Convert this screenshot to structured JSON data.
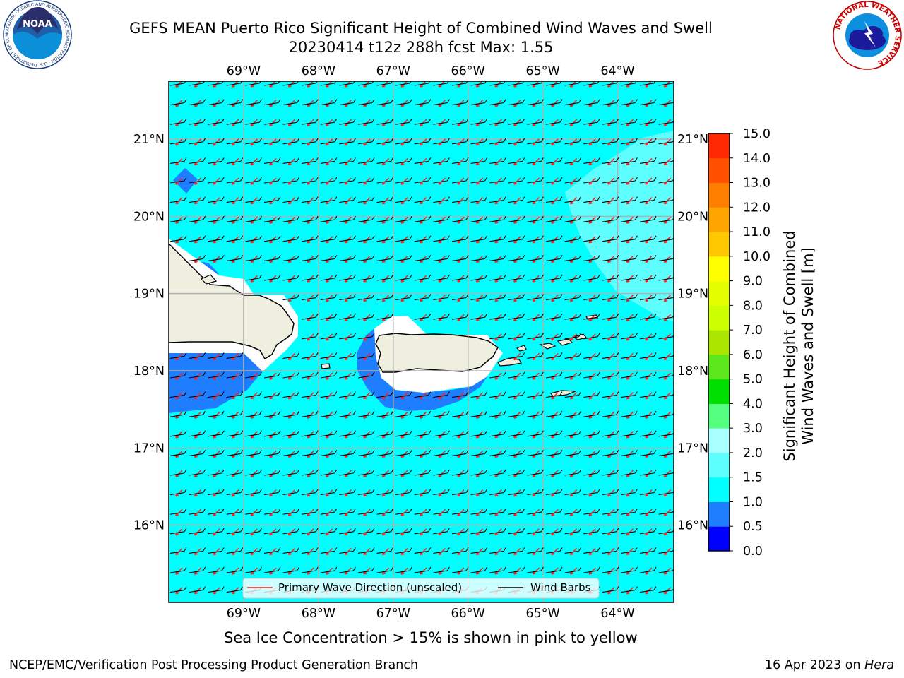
{
  "title": {
    "line1": "GEFS MEAN Puerto Rico Significant Height of Combined Wind Waves and Swell",
    "line2": "20230414 t12z 288h fcst   Max: 1.55"
  },
  "logos": {
    "left": {
      "text": "NOAA",
      "ring_text": "NATIONAL OCEANIC AND ATMOSPHERIC ADMINISTRATION · U.S. DEPARTMENT OF COMMERCE"
    },
    "right": {
      "ring_text": "NATIONAL WEATHER SERVICE"
    }
  },
  "map": {
    "lon_labels": [
      "69°W",
      "68°W",
      "67°W",
      "66°W",
      "65°W",
      "64°W"
    ],
    "lat_labels": [
      "21°N",
      "20°N",
      "19°N",
      "18°N",
      "17°N",
      "16°N"
    ],
    "lon_values": [
      -69,
      -68,
      -67,
      -66,
      -65,
      -64
    ],
    "lat_values": [
      21,
      20,
      19,
      18,
      17,
      16
    ],
    "extent": {
      "lon_min": -70,
      "lon_max": -63.25,
      "lat_min": 15,
      "lat_max": 21.75
    },
    "colors": {
      "ocean": "#00ffff",
      "land": "#efefdf",
      "shallow": "#1e7eff",
      "high": "#5effff",
      "mask": "#ffffff"
    }
  },
  "legend": {
    "wave_label": "Primary Wave Direction (unscaled)",
    "barb_label": "Wind Barbs",
    "wave_color": "#ff1e1e",
    "barb_color": "#000000"
  },
  "colorbar": {
    "title": "Significant Height of Combined Wind Waves and Swell [m]",
    "tick_labels": [
      "0.0",
      "0.5",
      "1.0",
      "1.5",
      "2.0",
      "3.0",
      "4.0",
      "5.0",
      "6.0",
      "7.0",
      "8.0",
      "9.0",
      "10.0",
      "11.0",
      "12.0",
      "13.0",
      "14.0",
      "15.0"
    ],
    "colors": [
      "#0000ff",
      "#1e7eff",
      "#00ffff",
      "#5effff",
      "#aaffff",
      "#55ff80",
      "#00e000",
      "#5ce61c",
      "#aae600",
      "#ccff00",
      "#e6ff00",
      "#ffff00",
      "#ffc800",
      "#ffa500",
      "#ff8000",
      "#ff5000",
      "#ff2800"
    ]
  },
  "note": "Sea Ice Concentration > 15% is shown in pink to yellow",
  "footer": {
    "left": "NCEP/EMC/Verification Post Processing Product Generation Branch",
    "date": "16 Apr 2023 on ",
    "machine": "Hera"
  }
}
